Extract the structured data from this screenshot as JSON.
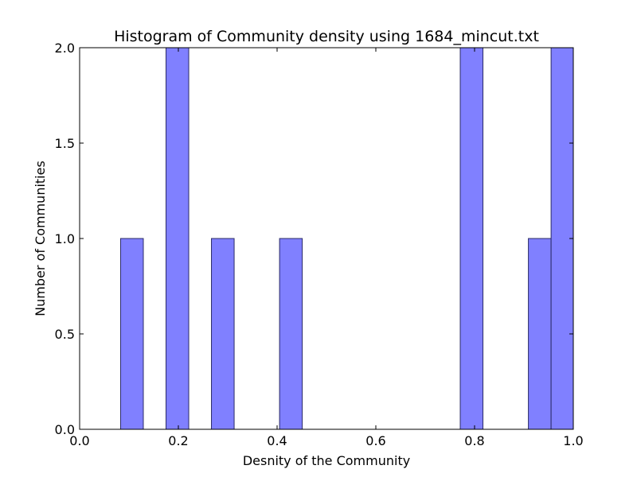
{
  "chart_data": {
    "type": "bar",
    "title": "Histogram of Community density using 1684_mincut.txt",
    "xlabel": "Desnity of the Community",
    "ylabel": "Number of Communities",
    "xlim": [
      0.0,
      1.0
    ],
    "ylim": [
      0.0,
      2.0
    ],
    "xticks": [
      "0.0",
      "0.2",
      "0.4",
      "0.6",
      "0.8",
      "1.0"
    ],
    "yticks": [
      "0.0",
      "0.5",
      "1.0",
      "1.5",
      "2.0"
    ],
    "bar_color": "#8080ff",
    "grid": false,
    "bins": [
      {
        "x0": 0.083,
        "x1": 0.129,
        "count": 1
      },
      {
        "x0": 0.175,
        "x1": 0.221,
        "count": 2
      },
      {
        "x0": 0.267,
        "x1": 0.313,
        "count": 1
      },
      {
        "x0": 0.405,
        "x1": 0.451,
        "count": 1
      },
      {
        "x0": 0.771,
        "x1": 0.817,
        "count": 2
      },
      {
        "x0": 0.909,
        "x1": 0.955,
        "count": 1
      },
      {
        "x0": 0.955,
        "x1": 1.0,
        "count": 2
      }
    ]
  }
}
